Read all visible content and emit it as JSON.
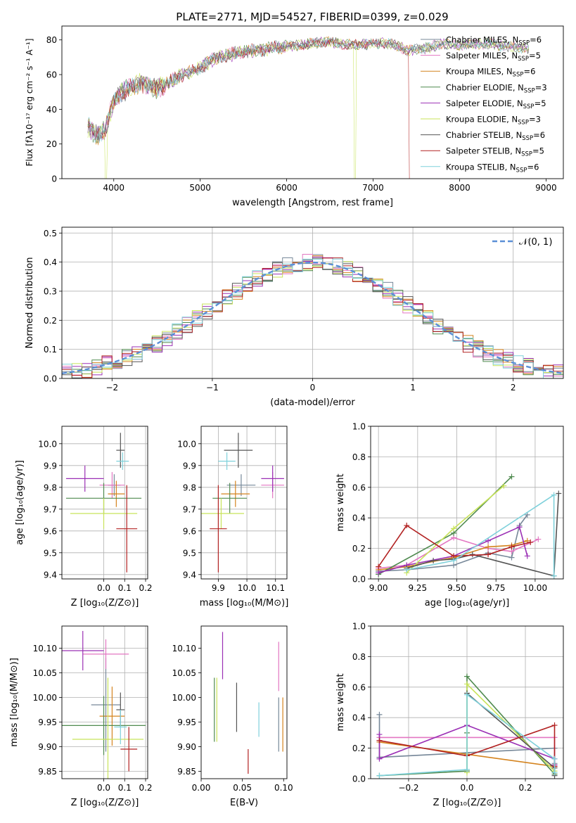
{
  "figure_title": "PLATE=2771, MJD=54527, FIBERID=0399, z=0.029",
  "colors": {
    "chabrier_miles": "#778899",
    "salpeter_miles": "#e377c2",
    "kroupa_miles": "#d4831e",
    "chabrier_elodie": "#4f8a4f",
    "salpeter_elodie": "#9b30b5",
    "kroupa_elodie": "#c8e35a",
    "chabrier_stelib": "#555555",
    "salpeter_stelib": "#b22222",
    "kroupa_stelib": "#7fd1db",
    "gauss": "#5b8fd6"
  },
  "chart_data": [
    {
      "id": "spectrum",
      "type": "line",
      "xlabel": "wavelength [Angstrom, rest frame]",
      "ylabel": "Flux [fλ10⁻¹⁷ erg cm⁻² s⁻¹ A⁻¹]",
      "xlim": [
        3400,
        9200
      ],
      "ylim": [
        0,
        88
      ],
      "xticks": [
        4000,
        5000,
        6000,
        7000,
        8000,
        9000
      ],
      "yticks": [
        0,
        20,
        40,
        60,
        80
      ],
      "anchors": [
        [
          3700,
          30
        ],
        [
          3800,
          25
        ],
        [
          3900,
          28
        ],
        [
          4000,
          45
        ],
        [
          4100,
          50
        ],
        [
          4300,
          55
        ],
        [
          4500,
          52
        ],
        [
          4800,
          60
        ],
        [
          5000,
          64
        ],
        [
          5200,
          70
        ],
        [
          5500,
          73
        ],
        [
          5800,
          75
        ],
        [
          6000,
          76
        ],
        [
          6300,
          78
        ],
        [
          6500,
          79
        ],
        [
          6700,
          77
        ],
        [
          7000,
          78
        ],
        [
          7200,
          78
        ],
        [
          7400,
          74
        ],
        [
          7600,
          75
        ],
        [
          7800,
          78
        ],
        [
          8000,
          77
        ],
        [
          8300,
          78
        ],
        [
          8600,
          76
        ],
        [
          8800,
          75
        ]
      ],
      "x_range": [
        3700,
        8800
      ],
      "dropouts": [
        {
          "series": 5,
          "at": 3910
        },
        {
          "series": 5,
          "at": 6790
        },
        {
          "series": 7,
          "at": 7420
        }
      ],
      "legend": [
        {
          "label": "Chabrier MILES, N",
          "sub": "SSP",
          "tail": "=6"
        },
        {
          "label": "Salpeter MILES, N",
          "sub": "SSP",
          "tail": "=5"
        },
        {
          "label": "Kroupa MILES, N",
          "sub": "SSP",
          "tail": "=6"
        },
        {
          "label": "Chabrier ELODIE, N",
          "sub": "SSP",
          "tail": "=3"
        },
        {
          "label": "Salpeter ELODIE, N",
          "sub": "SSP",
          "tail": "=5"
        },
        {
          "label": "Kroupa ELODIE, N",
          "sub": "SSP",
          "tail": "=3"
        },
        {
          "label": "Chabrier STELIB, N",
          "sub": "SSP",
          "tail": "=6"
        },
        {
          "label": "Salpeter STELIB, N",
          "sub": "SSP",
          "tail": "=5"
        },
        {
          "label": "Kroupa STELIB, N",
          "sub": "SSP",
          "tail": "=6"
        }
      ]
    },
    {
      "id": "residuals",
      "type": "line",
      "xlabel": "(data-model)/error",
      "ylabel": "Normed distribution",
      "xlim": [
        -2.5,
        2.5
      ],
      "ylim": [
        0,
        0.52
      ],
      "xticks": [
        -2,
        -1,
        0,
        1,
        2
      ],
      "yticks": [
        0.0,
        0.1,
        0.2,
        0.3,
        0.4,
        0.5
      ],
      "grid": true,
      "bin_width": 0.1,
      "gauss_label": "𝒩(0, 1)",
      "legend_position": "upper right"
    },
    {
      "id": "age_vs_Z",
      "type": "scatter",
      "xlabel": "Z [log₁₀(Z/Z⊙)]",
      "ylabel": "age  [log₁₀(age/yr)]",
      "xlim": [
        -0.2,
        0.21
      ],
      "ylim": [
        9.38,
        10.08
      ],
      "xticks": [
        0.0,
        0.1,
        0.2
      ],
      "yticks": [
        9.4,
        9.5,
        9.6,
        9.7,
        9.8,
        9.9,
        10.0
      ],
      "grid": true,
      "points": [
        {
          "x": 0.05,
          "y": 9.81,
          "ex": 0.03,
          "ey": 0.05
        },
        {
          "x": 0.04,
          "y": 9.81,
          "ex": 0.06,
          "ey": 0.06
        },
        {
          "x": 0.06,
          "y": 9.77,
          "ex": 0.04,
          "ey": 0.06
        },
        {
          "x": 0.0,
          "y": 9.75,
          "ex": 0.18,
          "ey": 0.07
        },
        {
          "x": -0.09,
          "y": 9.84,
          "ex": 0.09,
          "ey": 0.06
        },
        {
          "x": 0.0,
          "y": 9.68,
          "ex": 0.16,
          "ey": 0.07
        },
        {
          "x": 0.08,
          "y": 9.97,
          "ex": 0.02,
          "ey": 0.08
        },
        {
          "x": 0.11,
          "y": 9.61,
          "ex": 0.05,
          "ey": 0.2
        },
        {
          "x": 0.09,
          "y": 9.92,
          "ex": 0.03,
          "ey": 0.04
        }
      ]
    },
    {
      "id": "age_vs_mass",
      "type": "scatter",
      "xlabel": "mass [log₁₀(M/M⊙)]",
      "ylabel": "",
      "xlim": [
        9.84,
        10.14
      ],
      "ylim": [
        9.38,
        10.08
      ],
      "xticks": [
        9.9,
        10.0,
        10.1
      ],
      "yticks": [
        9.4,
        9.5,
        9.6,
        9.7,
        9.8,
        9.9,
        10.0
      ],
      "grid": true,
      "points": [
        {
          "x": 9.98,
          "y": 9.81,
          "ex": 0.05,
          "ey": 0.05
        },
        {
          "x": 10.09,
          "y": 9.81,
          "ex": 0.04,
          "ey": 0.06
        },
        {
          "x": 9.96,
          "y": 9.77,
          "ex": 0.05,
          "ey": 0.06
        },
        {
          "x": 9.94,
          "y": 9.75,
          "ex": 0.06,
          "ey": 0.07
        },
        {
          "x": 10.09,
          "y": 9.84,
          "ex": 0.04,
          "ey": 0.06
        },
        {
          "x": 9.91,
          "y": 9.68,
          "ex": 0.08,
          "ey": 0.07
        },
        {
          "x": 9.97,
          "y": 9.97,
          "ex": 0.05,
          "ey": 0.08
        },
        {
          "x": 9.9,
          "y": 9.61,
          "ex": 0.03,
          "ey": 0.2
        },
        {
          "x": 9.93,
          "y": 9.92,
          "ex": 0.03,
          "ey": 0.04
        }
      ]
    },
    {
      "id": "weight_vs_age",
      "type": "line",
      "xlabel": "age  [log₁₀(age/yr)]",
      "ylabel": "mass weight",
      "xlim": [
        8.95,
        10.18
      ],
      "ylim": [
        0,
        1.0
      ],
      "xticks": [
        9.0,
        9.25,
        9.5,
        9.75,
        10.0
      ],
      "yticks": [
        0.0,
        0.2,
        0.4,
        0.6,
        0.8,
        1.0
      ],
      "grid": true,
      "series": [
        {
          "values": [
            [
              9.0,
              0.05
            ],
            [
              9.18,
              0.06
            ],
            [
              9.48,
              0.09
            ],
            [
              9.7,
              0.17
            ],
            [
              9.85,
              0.14
            ],
            [
              9.9,
              0.35
            ],
            [
              9.95,
              0.42
            ]
          ]
        },
        {
          "values": [
            [
              9.0,
              0.07
            ],
            [
              9.18,
              0.09
            ],
            [
              9.48,
              0.27
            ],
            [
              9.7,
              0.2
            ],
            [
              9.85,
              0.18
            ],
            [
              10.02,
              0.26
            ]
          ]
        },
        {
          "values": [
            [
              9.0,
              0.06
            ],
            [
              9.18,
              0.08
            ],
            [
              9.48,
              0.14
            ],
            [
              9.7,
              0.21
            ],
            [
              9.85,
              0.22
            ],
            [
              9.95,
              0.25
            ]
          ]
        },
        {
          "values": [
            [
              9.0,
              0.03
            ],
            [
              9.48,
              0.3
            ],
            [
              9.85,
              0.67
            ]
          ]
        },
        {
          "values": [
            [
              9.0,
              0.04
            ],
            [
              9.18,
              0.09
            ],
            [
              9.48,
              0.15
            ],
            [
              9.7,
              0.25
            ],
            [
              9.9,
              0.34
            ],
            [
              9.95,
              0.15
            ]
          ]
        },
        {
          "values": [
            [
              9.18,
              0.04
            ],
            [
              9.48,
              0.33
            ],
            [
              9.8,
              0.61
            ]
          ]
        },
        {
          "values": [
            [
              9.18,
              0.07
            ],
            [
              9.35,
              0.12
            ],
            [
              9.48,
              0.13
            ],
            [
              9.6,
              0.16
            ],
            [
              10.12,
              0.02
            ],
            [
              10.15,
              0.56
            ]
          ]
        },
        {
          "values": [
            [
              9.0,
              0.08
            ],
            [
              9.18,
              0.35
            ],
            [
              9.48,
              0.15
            ],
            [
              9.7,
              0.16
            ],
            [
              9.85,
              0.21
            ],
            [
              9.97,
              0.24
            ]
          ]
        },
        {
          "values": [
            [
              9.18,
              0.06
            ],
            [
              9.48,
              0.12
            ],
            [
              10.12,
              0.55
            ],
            [
              10.12,
              0.02
            ]
          ]
        }
      ]
    },
    {
      "id": "mass_vs_Z",
      "type": "scatter",
      "xlabel": "Z [log₁₀(Z/Z⊙)]",
      "ylabel": "mass [log₁₀(M/M⊙)]",
      "xlim": [
        -0.2,
        0.21
      ],
      "ylim": [
        9.835,
        10.145
      ],
      "xticks": [
        0.0,
        0.1,
        0.2
      ],
      "yticks": [
        9.85,
        9.9,
        9.95,
        10.0,
        10.05,
        10.1
      ],
      "grid": true,
      "points": [
        {
          "x": 0.01,
          "y": 9.985,
          "ex": 0.07,
          "ey": 0.095
        },
        {
          "x": 0.01,
          "y": 10.088,
          "ex": 0.11,
          "ey": 0.03
        },
        {
          "x": 0.04,
          "y": 9.962,
          "ex": 0.06,
          "ey": 0.06
        },
        {
          "x": 0.0,
          "y": 9.943,
          "ex": 0.2,
          "ey": 0.06
        },
        {
          "x": -0.1,
          "y": 10.095,
          "ex": 0.1,
          "ey": 0.04
        },
        {
          "x": 0.02,
          "y": 9.915,
          "ex": 0.17,
          "ey": 0.125
        },
        {
          "x": 0.08,
          "y": 9.975,
          "ex": 0.02,
          "ey": 0.035
        },
        {
          "x": 0.12,
          "y": 9.895,
          "ex": 0.04,
          "ey": 0.045
        },
        {
          "x": 0.08,
          "y": 9.94,
          "ex": 0.03,
          "ey": 0.035
        }
      ]
    },
    {
      "id": "mass_vs_ebv",
      "type": "scatter",
      "xlabel": "E(B-V)",
      "ylabel": "",
      "xlim": [
        0.0,
        0.104
      ],
      "ylim": [
        9.835,
        10.145
      ],
      "xticks": [
        0.0,
        0.05,
        0.1
      ],
      "yticks": [
        9.85,
        9.9,
        9.95,
        10.0,
        10.05,
        10.1
      ],
      "grid": false,
      "points": [
        {
          "x": 0.094,
          "y": 9.945,
          "ex": 0.0,
          "ey": 0.055
        },
        {
          "x": 0.094,
          "y": 10.063,
          "ex": 0.0,
          "ey": 0.05
        },
        {
          "x": 0.099,
          "y": 9.945,
          "ex": 0.0,
          "ey": 0.055
        },
        {
          "x": 0.016,
          "y": 9.975,
          "ex": 0.0,
          "ey": 0.065
        },
        {
          "x": 0.026,
          "y": 10.085,
          "ex": 0.0,
          "ey": 0.048
        },
        {
          "x": 0.019,
          "y": 9.975,
          "ex": 0.0,
          "ey": 0.065
        },
        {
          "x": 0.043,
          "y": 9.98,
          "ex": 0.0,
          "ey": 0.05
        },
        {
          "x": 0.057,
          "y": 9.87,
          "ex": 0.0,
          "ey": 0.025
        },
        {
          "x": 0.07,
          "y": 9.955,
          "ex": 0.0,
          "ey": 0.035
        }
      ]
    },
    {
      "id": "weight_vs_Z",
      "type": "line",
      "xlabel": "Z [log₁₀(Z/Z⊙)]",
      "ylabel": "mass weight",
      "xlim": [
        -0.33,
        0.33
      ],
      "ylim": [
        0,
        1.0
      ],
      "xticks": [
        -0.2,
        0.0,
        0.2
      ],
      "yticks": [
        0.0,
        0.2,
        0.4,
        0.6,
        0.8,
        1.0
      ],
      "grid": true,
      "series": [
        {
          "values": [
            [
              -0.3,
              0.42
            ],
            [
              -0.3,
              0.14
            ],
            [
              0.0,
              0.17
            ],
            [
              0.3,
              0.2
            ],
            [
              0.3,
              0.1
            ]
          ]
        },
        {
          "values": [
            [
              -0.3,
              0.27
            ],
            [
              0.0,
              0.27
            ],
            [
              0.3,
              0.27
            ],
            [
              0.3,
              0.09
            ]
          ]
        },
        {
          "values": [
            [
              -0.3,
              0.24
            ],
            [
              0.0,
              0.16
            ],
            [
              0.3,
              0.08
            ],
            [
              0.3,
              0.09
            ]
          ]
        },
        {
          "values": [
            [
              -0.3,
              0.02
            ],
            [
              0.0,
              0.05
            ],
            [
              0.0,
              0.3
            ],
            [
              0.0,
              0.67
            ],
            [
              0.3,
              0.03
            ]
          ]
        },
        {
          "values": [
            [
              -0.3,
              0.29
            ],
            [
              -0.3,
              0.13
            ],
            [
              0.0,
              0.35
            ],
            [
              0.3,
              0.13
            ],
            [
              0.3,
              0.09
            ]
          ]
        },
        {
          "values": [
            [
              0.0,
              0.04
            ],
            [
              0.0,
              0.62
            ],
            [
              0.3,
              0.05
            ]
          ]
        },
        {
          "values": [
            [
              0.0,
              0.56
            ],
            [
              0.3,
              0.07
            ],
            [
              0.3,
              0.02
            ]
          ]
        },
        {
          "values": [
            [
              -0.3,
              0.25
            ],
            [
              0.0,
              0.15
            ],
            [
              0.3,
              0.35
            ],
            [
              0.3,
              0.08
            ]
          ]
        },
        {
          "values": [
            [
              -0.3,
              0.02
            ],
            [
              0.0,
              0.06
            ],
            [
              0.0,
              0.55
            ],
            [
              0.3,
              0.13
            ],
            [
              0.3,
              0.04
            ]
          ]
        }
      ]
    }
  ]
}
